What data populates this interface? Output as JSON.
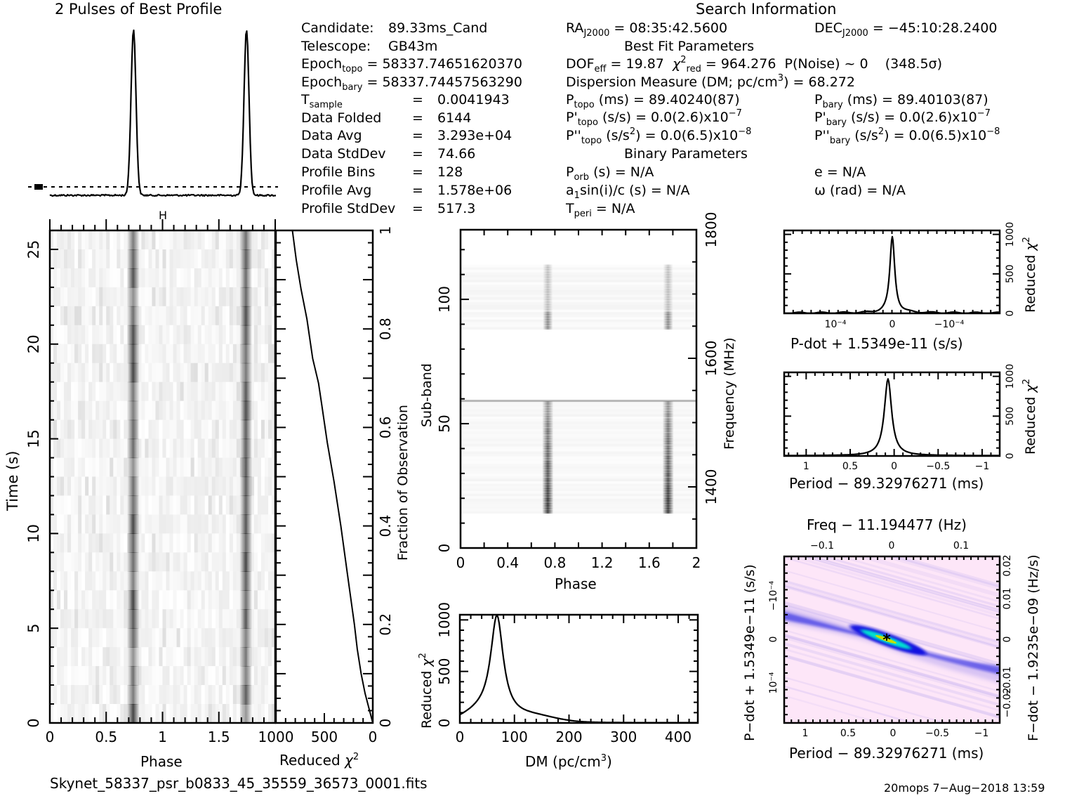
{
  "header": {
    "profile_title": "2 Pulses of Best Profile",
    "search_info_title": "Search Information",
    "best_fit_title": "Best Fit Parameters",
    "binary_title": "Binary Parameters"
  },
  "info_left": {
    "candidate_label": "Candidate:",
    "candidate_value": "89.33ms_Cand",
    "telescope_label": "Telescope:",
    "telescope_value": "GB43m",
    "epoch_topo_label": "Epoch",
    "epoch_topo_sub": "topo",
    "epoch_topo_value": "= 58337.74651620370",
    "epoch_bary_label": "Epoch",
    "epoch_bary_sub": "bary",
    "epoch_bary_value": "= 58337.74457563290",
    "tsample_label": "T",
    "tsample_sub": "sample",
    "tsample_value": "0.0041943",
    "rows": [
      {
        "label": "Data Folded",
        "value": "6144"
      },
      {
        "label": "Data Avg",
        "value": "3.293e+04"
      },
      {
        "label": "Data StdDev",
        "value": "74.66"
      },
      {
        "label": "Profile Bins",
        "value": "128"
      },
      {
        "label": "Profile Avg",
        "value": "1.578e+06"
      },
      {
        "label": "Profile StdDev",
        "value": "517.3"
      }
    ],
    "equals": "="
  },
  "search_info": {
    "ra_label": "RA",
    "ra_sub": "J2000",
    "ra_value": "= 08:35:42.5600",
    "dec_label": "DEC",
    "dec_sub": "J2000",
    "dec_value": "= −45:10:28.2400",
    "dof_label": "DOF",
    "dof_sub": "eff",
    "dof_value": "= 19.87",
    "chi_label": "χ",
    "chi_sup": "2",
    "chi_sub": "red",
    "chi_value": "= 964.276",
    "pnoise": "P(Noise) ~ 0",
    "sigma": "(348.5σ)",
    "dm_label": "Dispersion Measure (DM; pc/cm",
    "dm_sup": "3",
    "dm_value": ") = 68.272",
    "ptopo_label": "P",
    "ptopo_sub": "topo",
    "ptopo_value": "(ms) =  89.40240(87)",
    "pbary_label": "P",
    "pbary_sub": "bary",
    "pbary_value": "(ms) =  89.40103(87)",
    "pdtopo_label": "P'",
    "pdtopo_sub": "topo",
    "pdtopo_value": "(s/s) = 0.0(2.6)x10",
    "pdtopo_exp": "−7",
    "pdbary_label": "P'",
    "pdbary_sub": "bary",
    "pdbary_value": "(s/s) = 0.0(2.6)x10",
    "pdbary_exp": "−7",
    "pddtopo_label": "P''",
    "pddtopo_sub": "topo",
    "pddtopo_unit": "(s/s",
    "pddtopo_value": ") = 0.0(6.5)x10",
    "pddtopo_exp": "−8",
    "pddbary_label": "P''",
    "pddbary_sub": "bary",
    "pddbary_unit": "(s/s",
    "pddbary_value": ") = 0.0(6.5)x10",
    "pddbary_exp": "−8",
    "porb_label": "P",
    "porb_sub": "orb",
    "porb_value": "(s) = N/A",
    "e_value": "e = N/A",
    "a1_label": "a",
    "a1_sub": "1",
    "a1_value": "sin(i)/c (s) = N/A",
    "omega_value": "ω (rad) = N/A",
    "tperi_label": "T",
    "tperi_sub": "peri",
    "tperi_value": "= N/A"
  },
  "footer": {
    "filename": "Skynet_58337_psr_b0833_45_35559_36573_0001.fits",
    "stamp": "20mops   7−Aug−2018 13:59"
  },
  "chart_data": [
    {
      "id": "profile",
      "type": "line",
      "title": "2 Pulses of Best Profile",
      "x": "phase 0-2",
      "peaks_at_phase": [
        0.74,
        1.74
      ],
      "baseline_marker": "dashed line with error bar",
      "top_marker": "H"
    },
    {
      "id": "time-phase",
      "type": "heatmap",
      "xlabel": "Phase",
      "ylabel": "Time (s)",
      "xticks": [
        "0",
        "0.5",
        "1",
        "1.5"
      ],
      "yticks": [
        "0",
        "5",
        "10",
        "15",
        "20",
        "25"
      ],
      "xlim": [
        0,
        2
      ],
      "ylim": [
        0,
        26
      ],
      "pulse_phases": [
        0.74,
        1.74
      ]
    },
    {
      "id": "chi-vs-fraction",
      "type": "line",
      "xlabel": "Reduced χ²",
      "ylabel": "Fraction of Observation",
      "xticks": [
        "1000",
        "500",
        "0"
      ],
      "yticks": [
        "0",
        "0.2",
        "0.4",
        "0.6",
        "0.8",
        "1"
      ],
      "xlim": [
        1000,
        0
      ],
      "ylim": [
        0,
        1
      ],
      "points": [
        [
          0,
          0
        ],
        [
          40,
          0.03
        ],
        [
          80,
          0.06
        ],
        [
          120,
          0.1
        ],
        [
          160,
          0.15
        ],
        [
          190,
          0.2
        ],
        [
          260,
          0.3
        ],
        [
          330,
          0.4
        ],
        [
          400,
          0.49
        ],
        [
          470,
          0.57
        ],
        [
          530,
          0.65
        ],
        [
          560,
          0.69
        ],
        [
          620,
          0.74
        ],
        [
          680,
          0.82
        ],
        [
          740,
          0.88
        ],
        [
          790,
          0.94
        ],
        [
          830,
          1.0
        ]
      ]
    },
    {
      "id": "subband-phase",
      "type": "heatmap",
      "xlabel": "Phase",
      "ylabel": "Sub-band",
      "y2label": "Frequency (MHz)",
      "xticks": [
        "0",
        "0.4",
        "0.8",
        "1.2",
        "1.6",
        "2"
      ],
      "yticks": [
        "0",
        "50",
        "100"
      ],
      "y2ticks": [
        "1400",
        "1600",
        "1800"
      ],
      "xlim": [
        0,
        2
      ],
      "ylim": [
        0,
        128
      ],
      "empty_band": [
        59,
        88
      ],
      "pulse_phases": [
        0.74,
        1.76
      ]
    },
    {
      "id": "dm-curve",
      "type": "line",
      "xlabel": "DM (pc/cm³)",
      "ylabel": "Reduced χ²",
      "xticks": [
        "0",
        "100",
        "200",
        "300",
        "400"
      ],
      "yticks": [
        "0",
        "500",
        "1000"
      ],
      "xlim": [
        0,
        436
      ],
      "ylim": [
        0,
        1050
      ],
      "points": [
        [
          0,
          95
        ],
        [
          20,
          170
        ],
        [
          40,
          290
        ],
        [
          55,
          480
        ],
        [
          62,
          700
        ],
        [
          68,
          964
        ],
        [
          74,
          700
        ],
        [
          85,
          420
        ],
        [
          100,
          260
        ],
        [
          120,
          150
        ],
        [
          150,
          80
        ],
        [
          180,
          50
        ],
        [
          210,
          30
        ],
        [
          250,
          12
        ],
        [
          300,
          8
        ],
        [
          350,
          4
        ],
        [
          436,
          2
        ]
      ]
    },
    {
      "id": "pdot-curve",
      "type": "line",
      "xlabel": "P-dot + 1.5349e-11 (s/s)",
      "ylabel": "Reduced χ²",
      "xticks": [
        "10⁻⁴",
        "0",
        "−10⁻⁴"
      ],
      "yticks": [
        "0",
        "500",
        "1000"
      ],
      "ylim": [
        0,
        1050
      ],
      "peak_at": 0,
      "peak_value": 964
    },
    {
      "id": "period-curve",
      "type": "line",
      "xlabel": "Period − 89.32976271 (ms)",
      "ylabel": "Reduced χ²",
      "xticks": [
        "1",
        "0.5",
        "0",
        "−0.5",
        "−1"
      ],
      "yticks": [
        "0",
        "500",
        "1000"
      ],
      "xlim": [
        1.25,
        -1.2
      ],
      "ylim": [
        0,
        1050
      ],
      "peak_at": 0.07,
      "peak_value": 964
    },
    {
      "id": "p-pdot-map",
      "type": "heatmap",
      "title": "Freq − 11.194477 (Hz)",
      "xlabel": "Period − 89.32976271 (ms)",
      "ylabel": "P-dot + 1.5349e-11 (s/s)",
      "y2label": "F-dot − 1.9235e-09 (Hz/s)",
      "xticks": [
        "1",
        "0.5",
        "0",
        "−0.5",
        "−1"
      ],
      "x2ticks": [
        "−0.1",
        "0",
        "0.1"
      ],
      "yticks": [
        "10⁻⁴",
        "0",
        "−10⁻⁴"
      ],
      "y2ticks": [
        "−0.02",
        "−0.01",
        "0",
        "0.01",
        "0.02"
      ],
      "best_marker": "*",
      "colors": {
        "bg": "#fde6f8",
        "low": "#b8a6f0",
        "mid": "#1010e0",
        "high": "#00e0d0",
        "peak": "#c8e000"
      }
    }
  ]
}
